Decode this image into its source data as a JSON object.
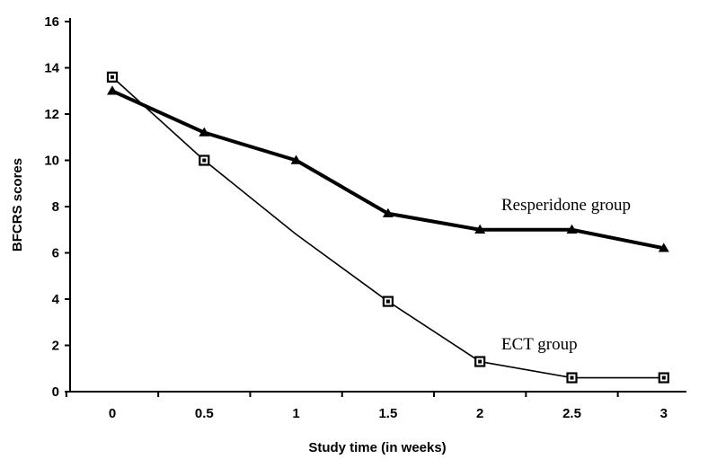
{
  "chart_data": {
    "type": "line",
    "title": "",
    "xlabel": "Study time (in weeks)",
    "ylabel": "BFCRS scores",
    "x": [
      0,
      0.5,
      1,
      1.5,
      2,
      2.5,
      3
    ],
    "x_tick_labels": [
      "0",
      "0.5",
      "1",
      "1.5",
      "2",
      "2.5",
      "3"
    ],
    "y_ticks": [
      0,
      2,
      4,
      6,
      8,
      10,
      12,
      14,
      16
    ],
    "ylim": [
      0,
      16
    ],
    "grid": false,
    "series": [
      {
        "name": "Resperidone group",
        "values": [
          13.0,
          11.2,
          10.0,
          7.7,
          7.0,
          7.0,
          6.2
        ],
        "marker": "triangle",
        "color": "#000000"
      },
      {
        "name": "ECT group",
        "values": [
          13.6,
          10.0,
          6.8,
          3.9,
          1.3,
          0.6,
          0.6
        ],
        "marker": "square",
        "color": "#000000"
      }
    ]
  }
}
